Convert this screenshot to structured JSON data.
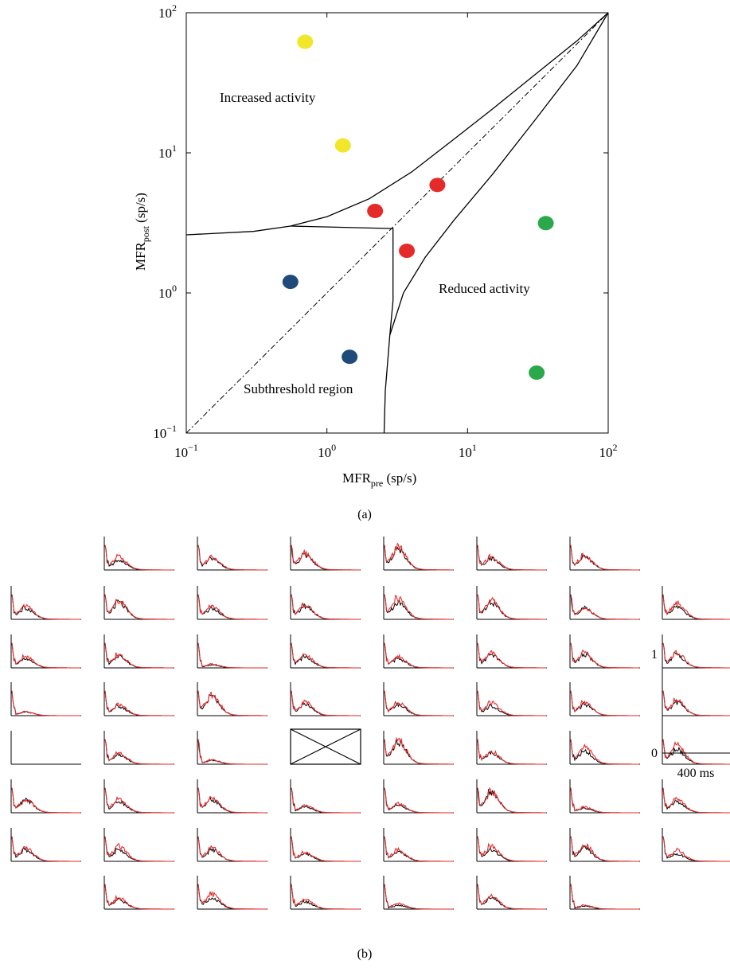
{
  "chart_data": [
    {
      "panel_label": "(a)",
      "type": "scatter",
      "xlabel": "MFR",
      "xlabel_sub": "pre",
      "xlabel_unit": " (sp/s)",
      "ylabel": "MFR",
      "ylabel_sub": "post",
      "ylabel_unit": " (sp/s)",
      "x_scale": "log",
      "y_scale": "log",
      "xlim": [
        0.1,
        100
      ],
      "ylim": [
        0.1,
        100
      ],
      "x_ticks": [
        {
          "base": "10",
          "exp": "−1",
          "value": 0.1
        },
        {
          "base": "10",
          "exp": "0",
          "value": 1
        },
        {
          "base": "10",
          "exp": "1",
          "value": 10
        },
        {
          "base": "10",
          "exp": "2",
          "value": 100
        }
      ],
      "y_ticks": [
        {
          "base": "10",
          "exp": "−1",
          "value": 0.1
        },
        {
          "base": "10",
          "exp": "0",
          "value": 1
        },
        {
          "base": "10",
          "exp": "1",
          "value": 10
        },
        {
          "base": "10",
          "exp": "2",
          "value": 100
        }
      ],
      "grid": false,
      "region_labels": [
        "Increased activity",
        "Reduced activity",
        "Subthreshold region"
      ],
      "colors": {
        "increased": "#f2e62a",
        "unchanged": "#e52a2a",
        "reduced": "#2aa84a",
        "subthreshold": "#1f4a7a",
        "line": "#000000"
      },
      "series": [
        {
          "group": "increased",
          "x": [
            0.7,
            1.3
          ],
          "y": [
            62,
            11.3
          ]
        },
        {
          "group": "unchanged",
          "x": [
            2.2,
            3.7,
            6.1
          ],
          "y": [
            3.85,
            2.0,
            5.9
          ]
        },
        {
          "group": "reduced",
          "x": [
            36,
            31
          ],
          "y": [
            3.15,
            0.27
          ]
        },
        {
          "group": "subthreshold",
          "x": [
            0.55,
            1.45
          ],
          "y": [
            1.2,
            0.35
          ]
        }
      ],
      "boundaries": {
        "identity": {
          "from": [
            0.1,
            0.1
          ],
          "to": [
            100,
            100
          ],
          "style": "dash-dot"
        },
        "upper_curve": [
          [
            0.1,
            2.6
          ],
          [
            0.3,
            2.75
          ],
          [
            0.55,
            3.0
          ],
          [
            1,
            3.5
          ],
          [
            2,
            4.7
          ],
          [
            4,
            7.3
          ],
          [
            8,
            12.5
          ],
          [
            15,
            20.5
          ],
          [
            30,
            36
          ],
          [
            60,
            63
          ],
          [
            100,
            100
          ]
        ],
        "lower_curve": [
          [
            2.55,
            0.1
          ],
          [
            2.6,
            0.2
          ],
          [
            2.8,
            0.5
          ],
          [
            3.5,
            1.0
          ],
          [
            5,
            1.8
          ],
          [
            8,
            3.3
          ],
          [
            15,
            7.0
          ],
          [
            30,
            17
          ],
          [
            60,
            42
          ],
          [
            100,
            100
          ]
        ],
        "subthreshold_box": [
          [
            0.55,
            3.0
          ],
          [
            2.95,
            2.88
          ],
          [
            2.95,
            0.88
          ],
          [
            2.8,
            0.5
          ]
        ]
      }
    },
    {
      "panel_label": "(b)",
      "type": "line",
      "grid_rows": 8,
      "grid_cols": 8,
      "series_colors": [
        "#000000",
        "#e52a2a"
      ],
      "y_scale_labels": [
        "1",
        "0"
      ],
      "x_scale_label": "400 ms",
      "cells": [
        [
          null,
          {
            "pb": 0.25,
            "pr": 0.35
          },
          {
            "pb": 0.3,
            "pr": 0.35
          },
          {
            "pb": 0.4,
            "pr": 0.45
          },
          {
            "pb": 0.55,
            "pr": 0.6
          },
          {
            "pb": 0.3,
            "pr": 0.35
          },
          {
            "pb": 0.35,
            "pr": 0.4
          },
          null
        ],
        [
          {
            "pb": 0.3,
            "pr": 0.35
          },
          {
            "pb": 0.45,
            "pr": 0.5
          },
          {
            "pb": 0.3,
            "pr": 0.35
          },
          {
            "pb": 0.35,
            "pr": 0.4
          },
          {
            "pb": 0.45,
            "pr": 0.55
          },
          {
            "pb": 0.45,
            "pr": 0.5
          },
          {
            "pb": 0.3,
            "pr": 0.3
          },
          {
            "pb": 0.35,
            "pr": 0.45
          }
        ],
        [
          {
            "pb": 0.25,
            "pr": 0.3
          },
          {
            "pb": 0.3,
            "pr": 0.35
          },
          {
            "pb": 0.08,
            "pr": 0.1
          },
          {
            "pb": 0.3,
            "pr": 0.35
          },
          {
            "pb": 0.25,
            "pr": 0.3
          },
          {
            "pb": 0.35,
            "pr": 0.4
          },
          {
            "pb": 0.35,
            "pr": 0.4
          },
          {
            "pb": 0.35,
            "pr": 0.4
          }
        ],
        [
          {
            "pb": 0.1,
            "pr": 0.1
          },
          {
            "pb": 0.25,
            "pr": 0.3
          },
          {
            "pb": 0.5,
            "pr": 0.55
          },
          {
            "pb": 0.3,
            "pr": 0.35
          },
          {
            "pb": 0.3,
            "pr": 0.35
          },
          {
            "pb": 0.25,
            "pr": 0.35
          },
          {
            "pb": 0.3,
            "pr": 0.35
          },
          {
            "pb": 0.35,
            "pr": 0.4
          }
        ],
        [
          {
            "empty": true
          },
          {
            "pb": 0.25,
            "pr": 0.3
          },
          {
            "pb": 0.1,
            "pr": 0.12
          },
          {
            "missing": true
          },
          {
            "pb": 0.6,
            "pr": 0.65
          },
          {
            "pb": 0.3,
            "pr": 0.35
          },
          {
            "pb": 0.35,
            "pr": 0.45
          },
          {
            "pb": 0.4,
            "pr": 0.5
          }
        ],
        [
          {
            "pb": 0.35,
            "pr": 0.35
          },
          {
            "pb": 0.3,
            "pr": 0.35
          },
          {
            "pb": 0.35,
            "pr": 0.4
          },
          {
            "pb": 0.15,
            "pr": 0.2
          },
          {
            "pb": 0.2,
            "pr": 0.25
          },
          {
            "pb": 0.55,
            "pr": 0.55
          },
          {
            "pb": 0.12,
            "pr": 0.15
          },
          {
            "pb": 0.3,
            "pr": 0.35
          }
        ],
        [
          {
            "pb": 0.3,
            "pr": 0.35
          },
          {
            "pb": 0.3,
            "pr": 0.4
          },
          {
            "pb": 0.3,
            "pr": 0.35
          },
          {
            "pb": 0.2,
            "pr": 0.25
          },
          {
            "pb": 0.25,
            "pr": 0.3
          },
          {
            "pb": 0.3,
            "pr": 0.4
          },
          {
            "pb": 0.35,
            "pr": 0.45
          },
          {
            "pb": 0.2,
            "pr": 0.3
          }
        ],
        [
          null,
          {
            "pb": 0.25,
            "pr": 0.3
          },
          {
            "pb": 0.3,
            "pr": 0.4
          },
          {
            "pb": 0.2,
            "pr": 0.25
          },
          {
            "pb": 0.1,
            "pr": 0.15
          },
          {
            "pb": 0.3,
            "pr": 0.35
          },
          {
            "pb": 0.08,
            "pr": 0.1
          },
          null
        ]
      ]
    }
  ]
}
